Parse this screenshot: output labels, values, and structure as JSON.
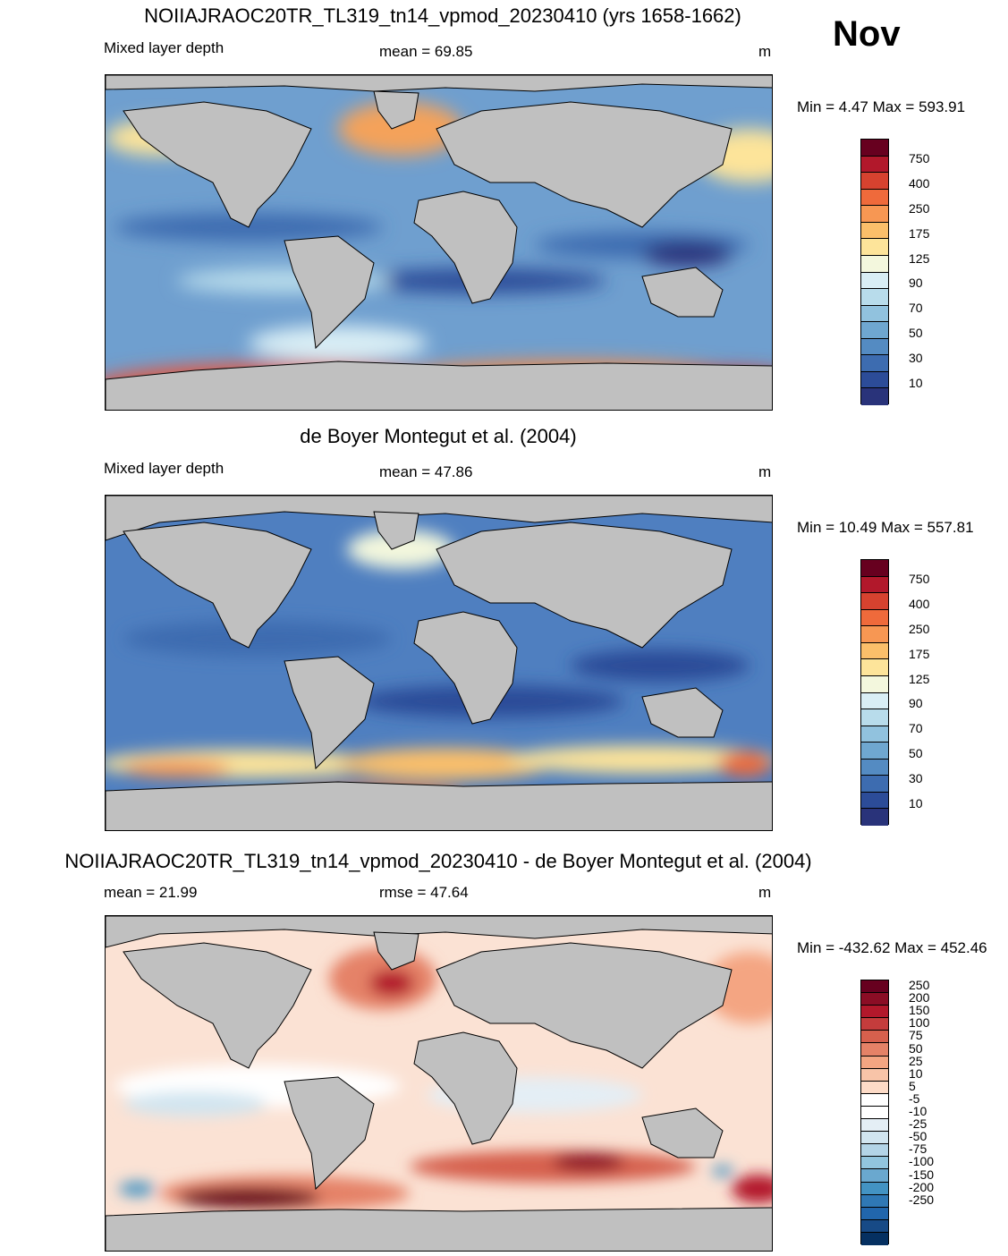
{
  "month": "Nov",
  "panels": [
    {
      "title": "NOIIAJRAOC20TR_TL319_tn14_vpmod_20230410 (yrs 1658-1662)",
      "left_label": "Mixed layer depth",
      "center_label": "mean =  69.85",
      "units": "m",
      "minmax": "Min =   4.47 Max = 593.91",
      "ticks": [
        "750",
        "400",
        "250",
        "175",
        "125",
        "90",
        "70",
        "50",
        "30",
        "10"
      ],
      "colors": [
        "#67001f",
        "#b2182b",
        "#d6422f",
        "#ef6a3b",
        "#f79753",
        "#fbbf6a",
        "#fde49a",
        "#f3f7dd",
        "#d9eef5",
        "#b8dceb",
        "#91c2de",
        "#6fa7d0",
        "#548bc2",
        "#3d6cb0",
        "#2c4c98",
        "#29337a"
      ]
    },
    {
      "title": "de Boyer Montegut et al. (2004)",
      "left_label": "Mixed layer depth",
      "center_label": "mean =  47.86",
      "units": "m",
      "minmax": "Min =  10.49 Max = 557.81",
      "ticks": [
        "750",
        "400",
        "250",
        "175",
        "125",
        "90",
        "70",
        "50",
        "30",
        "10"
      ],
      "colors": [
        "#67001f",
        "#b2182b",
        "#d6422f",
        "#ef6a3b",
        "#f79753",
        "#fbbf6a",
        "#fde49a",
        "#f3f7dd",
        "#d9eef5",
        "#b8dceb",
        "#91c2de",
        "#6fa7d0",
        "#548bc2",
        "#3d6cb0",
        "#2c4c98",
        "#29337a"
      ]
    },
    {
      "title": "NOIIAJRAOC20TR_TL319_tn14_vpmod_20230410 - de Boyer Montegut et al. (2004)",
      "left_label": "mean =  21.99",
      "center_label": "rmse =  47.64",
      "units": "m",
      "minmax": "Min = -432.62 Max = 452.46",
      "ticks": [
        "250",
        "200",
        "150",
        "100",
        "75",
        "50",
        "25",
        "10",
        "5",
        "-5",
        "-10",
        "-25",
        "-50",
        "-75",
        "-100",
        "-150",
        "-200",
        "-250"
      ],
      "colors": [
        "#67001f",
        "#8b0d25",
        "#b2182b",
        "#c43c3c",
        "#d6604d",
        "#e58267",
        "#f4a582",
        "#f8c4a8",
        "#fddbc7",
        "#ffffff",
        "#ffffff",
        "#e4eef5",
        "#d1e5f0",
        "#b3d4e7",
        "#92c5de",
        "#6aa8cf",
        "#4393c3",
        "#2f78b5",
        "#2166ac",
        "#174a86",
        "#053061"
      ]
    }
  ],
  "colors": {
    "land": "#c0c0c0",
    "coast": "#000000"
  }
}
